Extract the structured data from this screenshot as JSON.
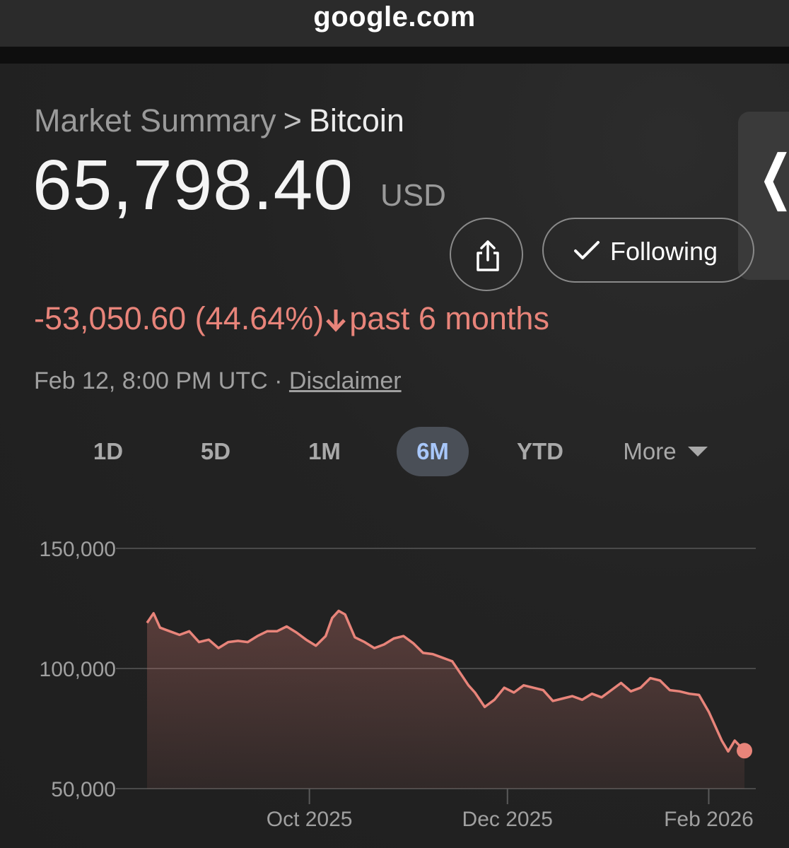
{
  "browser": {
    "url": "google.com"
  },
  "breadcrumb": {
    "market": "Market Summary",
    "separator": ">",
    "asset": "Bitcoin"
  },
  "quote": {
    "price": "65,798.40",
    "currency": "USD"
  },
  "actions": {
    "following_label": "Following"
  },
  "change": {
    "value": "-53,050.60 (44.64%)",
    "period": "past 6 months",
    "color": "#e8847a"
  },
  "timestamp": {
    "time": "Feb 12, 8:00 PM UTC",
    "separator": "·",
    "disclaimer": "Disclaimer"
  },
  "ranges": {
    "tabs": [
      "1D",
      "5D",
      "1M",
      "6M",
      "YTD"
    ],
    "selected": "6M",
    "more": "More"
  },
  "chart_data": {
    "type": "area",
    "y_tick_labels": [
      "150,000",
      "100,000",
      "50,000"
    ],
    "yticks": [
      150000,
      100000,
      50000
    ],
    "ylim": [
      50000,
      150000
    ],
    "x_tick_labels": [
      "Oct 2025",
      "Dec 2025",
      "Feb 2026"
    ],
    "xticks": [
      "2025-10-01",
      "2025-12-01",
      "2026-02-01"
    ],
    "xlim": [
      "2025-08-12",
      "2026-02-12"
    ],
    "grid": true,
    "line_color": "#e8847a",
    "x": [
      "2025-08-12",
      "2025-08-14",
      "2025-08-16",
      "2025-08-19",
      "2025-08-22",
      "2025-08-25",
      "2025-08-28",
      "2025-08-31",
      "2025-09-03",
      "2025-09-06",
      "2025-09-09",
      "2025-09-12",
      "2025-09-15",
      "2025-09-18",
      "2025-09-21",
      "2025-09-24",
      "2025-09-27",
      "2025-09-30",
      "2025-10-03",
      "2025-10-06",
      "2025-10-08",
      "2025-10-10",
      "2025-10-12",
      "2025-10-15",
      "2025-10-18",
      "2025-10-21",
      "2025-10-24",
      "2025-10-27",
      "2025-10-30",
      "2025-11-02",
      "2025-11-05",
      "2025-11-08",
      "2025-11-11",
      "2025-11-14",
      "2025-11-17",
      "2025-11-19",
      "2025-11-21",
      "2025-11-24",
      "2025-11-27",
      "2025-11-30",
      "2025-12-03",
      "2025-12-06",
      "2025-12-09",
      "2025-12-12",
      "2025-12-15",
      "2025-12-18",
      "2025-12-21",
      "2025-12-24",
      "2025-12-27",
      "2025-12-30",
      "2026-01-02",
      "2026-01-05",
      "2026-01-08",
      "2026-01-11",
      "2026-01-14",
      "2026-01-17",
      "2026-01-20",
      "2026-01-23",
      "2026-01-26",
      "2026-01-29",
      "2026-02-01",
      "2026-02-03",
      "2026-02-05",
      "2026-02-07",
      "2026-02-09",
      "2026-02-12"
    ],
    "values": [
      119000,
      123000,
      117000,
      115500,
      114000,
      115500,
      111000,
      112000,
      108500,
      111000,
      111500,
      111000,
      113500,
      115500,
      115500,
      117500,
      115000,
      112000,
      109500,
      113500,
      121000,
      124000,
      122500,
      113000,
      111000,
      108500,
      110000,
      112500,
      113500,
      110500,
      106500,
      106000,
      104500,
      103000,
      97000,
      93000,
      90000,
      84000,
      87000,
      92000,
      90000,
      93000,
      92000,
      91000,
      86500,
      87500,
      88500,
      87000,
      89500,
      88000,
      91000,
      94000,
      90500,
      92000,
      96000,
      95000,
      91000,
      90500,
      89500,
      89000,
      82000,
      76000,
      70000,
      65500,
      70000,
      65800
    ]
  }
}
